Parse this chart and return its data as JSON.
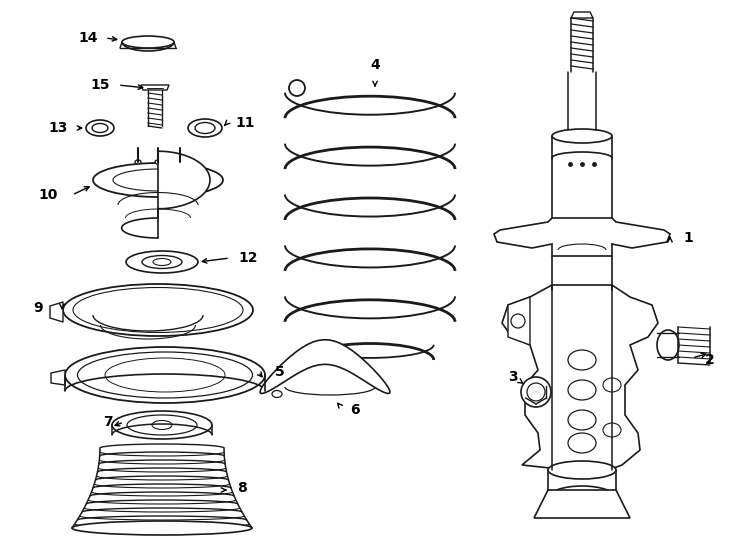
{
  "bg": "#ffffff",
  "lc": "#1a1a1a",
  "lw": 1.0,
  "fig_w": 7.34,
  "fig_h": 5.4,
  "dpi": 100
}
